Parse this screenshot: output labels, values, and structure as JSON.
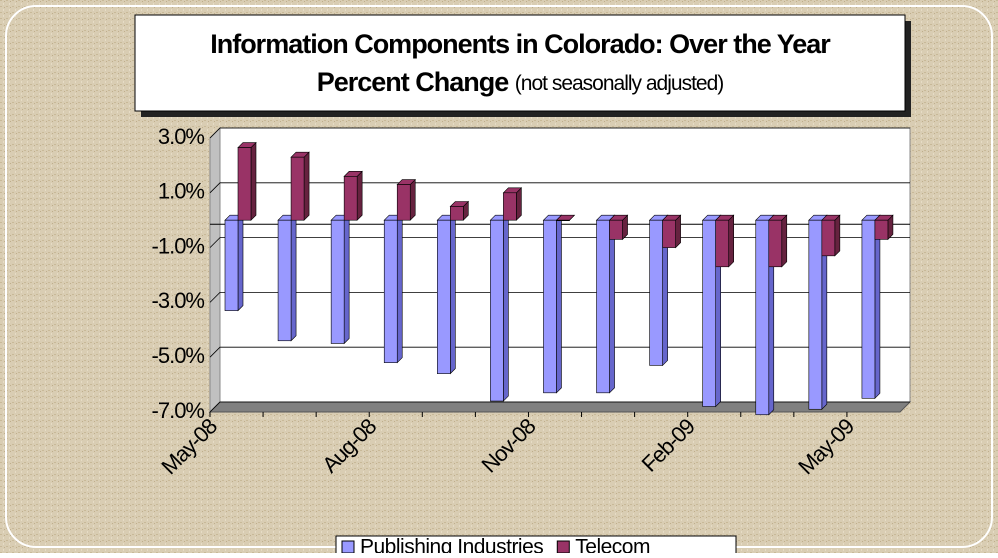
{
  "chart_data": {
    "type": "bar",
    "title": "Information Components in Colorado: Over the Year",
    "title_line2": "Percent Change",
    "subtitle": "(not seasonally adjusted)",
    "categories": [
      "May-08",
      null,
      null,
      "Aug-08",
      null,
      null,
      "Nov-08",
      null,
      null,
      "Feb-09",
      null,
      null,
      "May-09"
    ],
    "series": [
      {
        "name": "Publishing Industries",
        "color": "#9999ff",
        "values": [
          -3.3,
          -4.4,
          -4.5,
          -5.2,
          -5.6,
          -6.6,
          -6.3,
          -6.3,
          -5.3,
          -6.8,
          -7.1,
          -6.9,
          -6.5
        ]
      },
      {
        "name": "Telecom",
        "color": "#993366",
        "values": [
          2.65,
          2.3,
          1.6,
          1.3,
          0.5,
          1.0,
          0.0,
          -0.7,
          -1.0,
          -1.7,
          -1.7,
          -1.3,
          -0.7
        ]
      }
    ],
    "ylim": [
      -7,
      3
    ],
    "yticks": [
      {
        "value": 3,
        "label": "3.0%"
      },
      {
        "value": 1,
        "label": "1.0%"
      },
      {
        "value": -1,
        "label": "-1.0%"
      },
      {
        "value": -3,
        "label": "-3.0%"
      },
      {
        "value": -5,
        "label": "-5.0%"
      },
      {
        "value": -7,
        "label": "-7.0%"
      }
    ],
    "grid": true,
    "legend": "bottom"
  }
}
